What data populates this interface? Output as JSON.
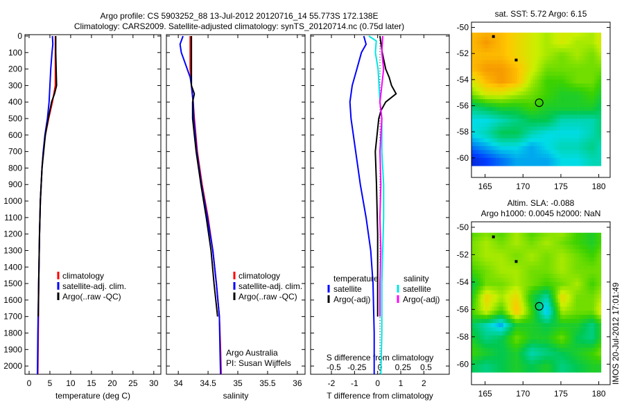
{
  "title_line1": "Argo profile: CS 5903252_88 13-Jul-2012 20120716_14 55.773S 172.138E",
  "title_line2": "Climatology: CARS2009. Satellite-adjusted climatology: synTS_20120714.nc (0.75d later)",
  "stamp": "IMOS 20-Jul-2012 17:01:49",
  "colors": {
    "climatology": "#ff0000",
    "satellite": "#0000ff",
    "argo": "#000000",
    "sal_satellite": "#00e5e5",
    "sal_argo": "#ff00ff"
  },
  "chart_data": [
    {
      "type": "line",
      "name": "temperature",
      "xlabel": "temperature (deg C)",
      "ylabel": "",
      "xlim": [
        -1,
        31.7
      ],
      "ylim": [
        2050,
        0
      ],
      "xticks": [
        "0",
        "5",
        "10",
        "15",
        "20",
        "25",
        "30"
      ],
      "xtick_values": [
        0,
        5,
        10,
        15,
        20,
        25,
        30
      ],
      "yticks": [
        "0",
        "100",
        "200",
        "300",
        "400",
        "500",
        "600",
        "700",
        "800",
        "900",
        "1000",
        "1100",
        "1200",
        "1300",
        "1400",
        "1500",
        "1600",
        "1700",
        "1800",
        "1900",
        "2000"
      ],
      "legend": [
        "climatology",
        "satellite-adj. clim.",
        "Argo(..raw -QC)"
      ],
      "series": [
        {
          "name": "climatology",
          "color": "#ff0000",
          "depth": [
            0,
            100,
            200,
            300,
            400,
            500,
            600,
            700,
            800,
            1000,
            1200,
            1500,
            1800,
            2050
          ],
          "values": [
            6.3,
            6.3,
            6.3,
            6.3,
            5.6,
            4.7,
            3.9,
            3.4,
            3.1,
            2.7,
            2.5,
            2.3,
            2.2,
            2.1
          ]
        },
        {
          "name": "satellite-adj. clim.",
          "color": "#0000ff",
          "depth": [
            0,
            50,
            100,
            200,
            300,
            400,
            500,
            600,
            700,
            800,
            1000,
            1200,
            1500,
            1800,
            2050
          ],
          "values": [
            5.6,
            5.7,
            5.5,
            5.2,
            5.0,
            4.8,
            4.4,
            3.8,
            3.4,
            3.1,
            2.7,
            2.5,
            2.3,
            2.1,
            2.0
          ]
        },
        {
          "name": "Argo(..raw -QC)",
          "color": "#000000",
          "depth": [
            0,
            100,
            200,
            300,
            350,
            400,
            500,
            600,
            700,
            800,
            1000,
            1200,
            1500,
            1700
          ],
          "values": [
            6.4,
            6.4,
            6.5,
            6.6,
            6.1,
            5.4,
            4.6,
            3.9,
            3.5,
            3.1,
            2.7,
            2.5,
            2.3,
            2.2
          ]
        }
      ]
    },
    {
      "type": "line",
      "name": "salinity",
      "xlabel": "salinity",
      "xlim": [
        33.8,
        36.13
      ],
      "ylim": [
        2050,
        0
      ],
      "xticks": [
        "34",
        "34.5",
        "35",
        "35.5",
        "36"
      ],
      "xtick_values": [
        34,
        34.5,
        35,
        35.5,
        36
      ],
      "legend": [
        "climatology",
        "satellite-adj. clim.",
        "Argo(..raw -QC)"
      ],
      "annotation": [
        "Argo Australia",
        "PI: Susan Wijffels"
      ],
      "series": [
        {
          "name": "climatology",
          "color": "#ff0000",
          "depth": [
            0,
            100,
            200,
            300,
            400,
            500,
            700,
            900,
            1100,
            1300,
            1500,
            1700,
            1900,
            2050
          ],
          "values": [
            34.2,
            34.2,
            34.2,
            34.22,
            34.25,
            34.27,
            34.32,
            34.4,
            34.5,
            34.58,
            34.64,
            34.69,
            34.71,
            34.72
          ]
        },
        {
          "name": "satellite-adj. clim.",
          "color": "#0000ff",
          "depth": [
            0,
            50,
            100,
            150,
            250,
            300,
            400,
            500,
            700,
            900,
            1100,
            1300,
            1500,
            1700,
            1900,
            2050
          ],
          "values": [
            34.08,
            34.03,
            34.05,
            34.1,
            34.2,
            34.22,
            34.25,
            34.26,
            34.31,
            34.39,
            34.49,
            34.58,
            34.64,
            34.69,
            34.7,
            34.71
          ]
        },
        {
          "name": "Argo(..raw -QC)",
          "color": "#000000",
          "depth": [
            0,
            100,
            200,
            300,
            350,
            400,
            500,
            700,
            900,
            1100,
            1300,
            1500,
            1700
          ],
          "values": [
            34.22,
            34.22,
            34.22,
            34.22,
            34.27,
            34.24,
            34.24,
            34.3,
            34.38,
            34.47,
            34.55,
            34.6,
            34.66
          ]
        }
      ]
    },
    {
      "type": "line",
      "name": "difference",
      "xlabel": "T difference from climatology",
      "xlabel2": "S difference from climatology",
      "xlim": [
        -2.9,
        3.1
      ],
      "ylim": [
        2050,
        0
      ],
      "xticks": [
        "-2",
        "-1",
        "0",
        "1",
        "2"
      ],
      "xtick_values": [
        -2,
        -1,
        0,
        1,
        2
      ],
      "xticks2": [
        "-0.5",
        "-0.25",
        "0",
        "0.25",
        "0.5"
      ],
      "xtick2_values": [
        -0.5,
        -0.25,
        0,
        0.25,
        0.5
      ],
      "legend": {
        "temperature": "temperature",
        "salinity": "salinity",
        "satellite": "satellite",
        "argo": "Argo(-adj)"
      },
      "series": [
        {
          "name": "T satellite",
          "color": "#0000ff",
          "scale": "T",
          "depth": [
            0,
            50,
            100,
            200,
            300,
            400,
            500,
            700,
            900,
            1100,
            1300,
            1500,
            1800,
            2050
          ],
          "values": [
            -0.6,
            -0.5,
            -0.7,
            -0.9,
            -1.1,
            -1.2,
            -1.15,
            -0.95,
            -0.75,
            -0.5,
            -0.3,
            -0.2,
            -0.15,
            -0.15
          ]
        },
        {
          "name": "T Argo(-adj)",
          "color": "#000000",
          "scale": "T",
          "depth": [
            0,
            100,
            200,
            250,
            300,
            350,
            400,
            450,
            500,
            700,
            900,
            1200,
            1500,
            1700
          ],
          "values": [
            0.1,
            0.2,
            0.35,
            0.5,
            0.6,
            0.8,
            0.35,
            0.15,
            0.05,
            -0.1,
            -0.05,
            0,
            0,
            0
          ]
        },
        {
          "name": "S satellite",
          "color": "#00e5e5",
          "scale": "S",
          "depth": [
            0,
            30,
            100,
            200,
            300,
            400,
            500,
            700,
            900,
            1100,
            1300,
            1500,
            1800,
            2050
          ],
          "values": [
            -0.12,
            -0.04,
            -0.05,
            -0.02,
            -0.01,
            0,
            0.02,
            0.02,
            0.04,
            0.04,
            0.03,
            0.02,
            0.02,
            0.01
          ]
        },
        {
          "name": "S Argo(-adj)",
          "color": "#ff00ff",
          "scale": "S",
          "depth": [
            0,
            100,
            200,
            300,
            400,
            500,
            700,
            900,
            1100,
            1300,
            1500,
            1700
          ],
          "values": [
            0.03,
            0.02,
            0.04,
            0.02,
            0.0,
            0.02,
            0.0,
            0.01,
            0.0,
            0.01,
            0.0,
            0.0
          ]
        }
      ]
    },
    {
      "type": "heatmap",
      "name": "sst-map",
      "title": "sat. SST: 5.72 Argo: 6.15",
      "xlim": [
        163.2,
        181.5
      ],
      "ylim": [
        -61.5,
        -49.6
      ],
      "xticks": [
        "165",
        "170",
        "175",
        "180"
      ],
      "xtick_values": [
        165,
        170,
        175,
        180
      ],
      "yticks": [
        "-50",
        "-52",
        "-54",
        "-56",
        "-58",
        "-60"
      ],
      "ytick_values": [
        -50,
        -52,
        -54,
        -56,
        -58,
        -60
      ],
      "lon": [
        163,
        165,
        167,
        169,
        171,
        173,
        175,
        177,
        179,
        180
      ],
      "lat": [
        -50,
        -51,
        -52,
        -53,
        -54,
        -55,
        -56,
        -57,
        -58,
        -59,
        -60
      ],
      "vmin": 0,
      "vmax": 10,
      "z": [
        [
          8,
          8,
          8,
          7.5,
          7,
          6.5,
          7,
          7,
          6.5,
          7
        ],
        [
          8,
          8.5,
          8,
          7.5,
          7,
          6.5,
          7,
          6.5,
          6.5,
          7
        ],
        [
          8,
          8,
          8,
          7.5,
          7,
          6.5,
          6,
          6.5,
          6,
          6.5
        ],
        [
          8,
          8.5,
          8.5,
          8,
          7,
          6,
          6,
          6,
          6,
          6
        ],
        [
          7,
          8,
          8.5,
          8,
          6.5,
          5.5,
          5.5,
          6,
          6,
          5.5
        ],
        [
          6,
          7,
          7,
          6.5,
          6,
          5.5,
          5,
          5,
          5.5,
          5
        ],
        [
          4,
          4.5,
          5,
          5,
          5.5,
          5,
          5,
          5,
          5,
          4.5
        ],
        [
          3,
          3,
          3.5,
          4,
          4.5,
          4.5,
          3.5,
          3.5,
          3.5,
          4
        ],
        [
          3,
          3.5,
          4.5,
          4.5,
          3.5,
          3,
          3,
          3,
          3.5,
          4
        ],
        [
          2,
          2.5,
          3,
          3,
          2.5,
          3,
          3.5,
          3.5,
          4,
          3.5
        ],
        [
          1,
          1.5,
          2,
          2.5,
          2.5,
          2.5,
          3,
          3,
          3.5,
          3.5
        ]
      ],
      "argo_position": [
        172.138,
        -55.773
      ],
      "islands": [
        [
          166.1,
          -50.7
        ],
        [
          169.1,
          -52.5
        ]
      ]
    },
    {
      "type": "heatmap",
      "name": "sla-map",
      "title": "Altim. SLA: -0.088",
      "subtitle": "Argo h1000: 0.0045 h2000: NaN",
      "xlim": [
        163.2,
        181.5
      ],
      "ylim": [
        -61.5,
        -49.6
      ],
      "xticks": [
        "165",
        "170",
        "175",
        "180"
      ],
      "xtick_values": [
        165,
        170,
        175,
        180
      ],
      "yticks": [
        "-50",
        "-52",
        "-54",
        "-56",
        "-58",
        "-60"
      ],
      "ytick_values": [
        -50,
        -52,
        -54,
        -56,
        -58,
        -60
      ],
      "lon": [
        163,
        165,
        167,
        169,
        171,
        173,
        175,
        177,
        179,
        180
      ],
      "lat": [
        -50,
        -51,
        -52,
        -53,
        -54,
        -55,
        -56,
        -57,
        -58,
        -59,
        -60
      ],
      "vmin": 0,
      "vmax": 10,
      "z": [
        [
          5.5,
          6,
          5.5,
          6.5,
          5.5,
          6,
          6.5,
          5.5,
          5,
          5.5
        ],
        [
          6,
          6.5,
          6,
          6.5,
          6,
          6.5,
          6,
          5.5,
          5,
          5.5
        ],
        [
          6,
          6.5,
          6.5,
          6,
          6.5,
          6,
          6.5,
          6,
          5.5,
          6
        ],
        [
          5.5,
          6,
          6.5,
          6.5,
          6,
          6,
          6.5,
          6,
          6,
          6
        ],
        [
          4.5,
          6,
          6,
          6.5,
          6,
          5.5,
          6,
          6.5,
          5.5,
          6
        ],
        [
          5,
          7.5,
          6.5,
          7.5,
          5,
          3.5,
          7.5,
          6,
          6,
          6.5
        ],
        [
          5.5,
          7,
          5.5,
          8,
          5.5,
          2.5,
          6.5,
          6,
          6,
          7
        ],
        [
          4.5,
          3.5,
          2.5,
          5,
          5,
          4.5,
          5,
          5,
          4,
          5
        ],
        [
          5,
          4,
          4.5,
          6,
          5,
          5,
          6,
          4.5,
          4,
          5
        ],
        [
          5.5,
          5,
          4.5,
          5,
          3.5,
          4,
          4.5,
          5,
          5.5,
          6
        ],
        [
          4.5,
          4,
          4.5,
          5,
          4.5,
          5,
          4,
          4.5,
          5,
          5
        ]
      ],
      "argo_position": [
        172.138,
        -55.773
      ],
      "islands": [
        [
          166.1,
          -50.7
        ],
        [
          169.1,
          -52.5
        ]
      ]
    }
  ]
}
